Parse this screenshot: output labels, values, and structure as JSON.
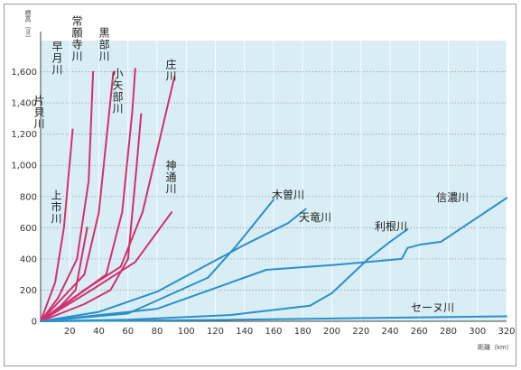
{
  "chart_data": {
    "type": "line",
    "title": "",
    "ylabel": "標高（m）",
    "xlabel": "距離（km）",
    "xlim": [
      0,
      320
    ],
    "ylim": [
      0,
      1800
    ],
    "xticks": [
      20,
      40,
      60,
      80,
      100,
      120,
      140,
      160,
      180,
      200,
      220,
      240,
      260,
      280,
      300,
      320
    ],
    "yticks": [
      0,
      200,
      400,
      600,
      800,
      1000,
      1200,
      1400,
      1600
    ],
    "ytick_labels": [
      "0",
      "200",
      "400",
      "600",
      "800",
      "1,000",
      "1,200",
      "1,400",
      "1,600"
    ],
    "grid": true,
    "colors": {
      "japanese": "#d42f6c",
      "foreign": "#2b8fca",
      "plot_bg": "#d8eef4"
    },
    "series": [
      {
        "name": "片貝川",
        "group": "japanese",
        "points": [
          [
            0,
            0
          ],
          [
            10,
            250
          ],
          [
            16,
            600
          ],
          [
            22,
            1230
          ]
        ]
      },
      {
        "name": "早月川",
        "group": "japanese",
        "points": [
          [
            0,
            0
          ],
          [
            12,
            150
          ],
          [
            25,
            400
          ],
          [
            33,
            900
          ],
          [
            36,
            1600
          ]
        ]
      },
      {
        "name": "常願寺川",
        "group": "japanese",
        "points": [
          [
            0,
            0
          ],
          [
            15,
            150
          ],
          [
            30,
            300
          ],
          [
            40,
            700
          ],
          [
            50,
            1600
          ]
        ]
      },
      {
        "name": "上市川",
        "group": "japanese",
        "points": [
          [
            0,
            0
          ],
          [
            14,
            100
          ],
          [
            24,
            200
          ],
          [
            32,
            600
          ]
        ]
      },
      {
        "name": "黒部川",
        "group": "japanese",
        "points": [
          [
            0,
            0
          ],
          [
            20,
            130
          ],
          [
            45,
            300
          ],
          [
            56,
            700
          ],
          [
            63,
            1350
          ],
          [
            65,
            1620
          ]
        ]
      },
      {
        "name": "小矢部川",
        "group": "japanese",
        "points": [
          [
            0,
            0
          ],
          [
            30,
            110
          ],
          [
            48,
            200
          ],
          [
            60,
            400
          ],
          [
            66,
            1000
          ],
          [
            69,
            1330
          ]
        ]
      },
      {
        "name": "庄川",
        "group": "japanese",
        "points": [
          [
            0,
            0
          ],
          [
            30,
            200
          ],
          [
            55,
            350
          ],
          [
            70,
            700
          ],
          [
            92,
            1570
          ]
        ]
      },
      {
        "name": "神通川",
        "group": "japanese",
        "points": [
          [
            0,
            0
          ],
          [
            35,
            200
          ],
          [
            65,
            380
          ],
          [
            90,
            700
          ]
        ]
      },
      {
        "name": "木曽川",
        "group": "foreign",
        "points": [
          [
            0,
            0
          ],
          [
            60,
            50
          ],
          [
            115,
            280
          ],
          [
            135,
            490
          ],
          [
            160,
            780
          ]
        ]
      },
      {
        "name": "天竜川",
        "group": "foreign",
        "points": [
          [
            0,
            0
          ],
          [
            40,
            60
          ],
          [
            80,
            190
          ],
          [
            100,
            290
          ],
          [
            140,
            490
          ],
          [
            170,
            630
          ],
          [
            182,
            720
          ]
        ]
      },
      {
        "name": "利根川",
        "group": "foreign",
        "points": [
          [
            0,
            0
          ],
          [
            60,
            10
          ],
          [
            130,
            40
          ],
          [
            185,
            100
          ],
          [
            200,
            180
          ],
          [
            225,
            400
          ],
          [
            240,
            510
          ],
          [
            252,
            590
          ]
        ]
      },
      {
        "name": "信濃川",
        "group": "foreign",
        "points": [
          [
            0,
            0
          ],
          [
            80,
            80
          ],
          [
            155,
            330
          ],
          [
            200,
            360
          ],
          [
            248,
            400
          ],
          [
            252,
            470
          ],
          [
            260,
            490
          ],
          [
            275,
            510
          ],
          [
            320,
            790
          ]
        ]
      },
      {
        "name": "セーヌ川",
        "group": "foreign",
        "points": [
          [
            0,
            0
          ],
          [
            120,
            8
          ],
          [
            220,
            20
          ],
          [
            320,
            32
          ]
        ]
      }
    ],
    "labels": [
      "片貝川",
      "早月川",
      "常願寺川",
      "上市川",
      "黒部川",
      "小矢部川",
      "庄川",
      "神通川",
      "木曽川",
      "天竜川",
      "利根川",
      "信濃川",
      "セーヌ川"
    ]
  }
}
